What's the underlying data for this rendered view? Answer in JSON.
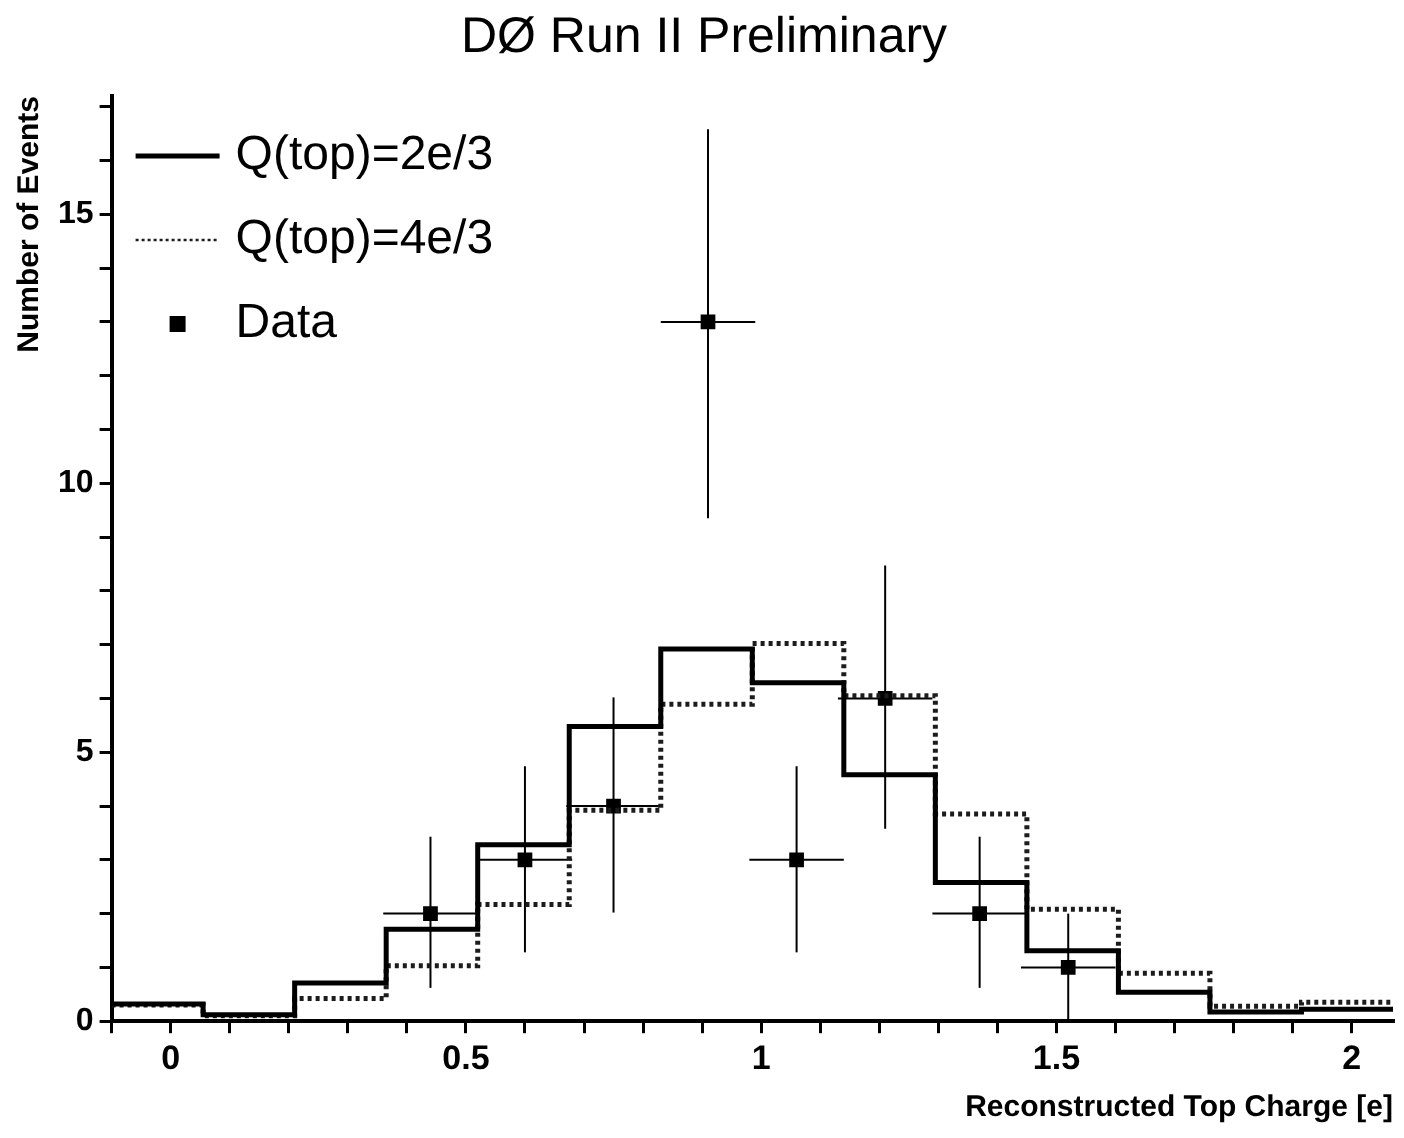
{
  "chart_data": {
    "type": "histogram",
    "title": "DØ Run II Preliminary",
    "xlabel": "Reconstructed Top Charge [e]",
    "ylabel": "Number of Events",
    "bins": [
      -0.1,
      0.055,
      0.21,
      0.365,
      0.52,
      0.675,
      0.83,
      0.985,
      1.14,
      1.295,
      1.45,
      1.605,
      1.76,
      1.915,
      2.07
    ],
    "series": [
      {
        "name": "Q(top)=2e/3",
        "color": "#000000",
        "line_style": "solid",
        "values": [
          0.32,
          0.12,
          0.71,
          1.71,
          3.28,
          5.48,
          6.92,
          6.29,
          4.58,
          2.58,
          1.31,
          0.54,
          0.17,
          0.22
        ]
      },
      {
        "name": "Q(top)=4e/3",
        "color": "#1c1c1c",
        "line_style": "dotted",
        "values": [
          0.3,
          0.1,
          0.42,
          1.03,
          2.17,
          3.92,
          5.89,
          7.02,
          6.05,
          3.85,
          2.08,
          0.89,
          0.28,
          0.35
        ]
      },
      {
        "name": "Data",
        "type": "scatter",
        "color": "#000000",
        "marker": "square",
        "x": [
          0.44,
          0.6,
          0.75,
          0.91,
          1.06,
          1.21,
          1.37,
          1.52
        ],
        "values": [
          2,
          3,
          4,
          13,
          3,
          6,
          2,
          1
        ],
        "errors": [
          [
            0.62,
            3.43
          ],
          [
            1.28,
            4.74
          ],
          [
            2.02,
            6.02
          ],
          [
            9.35,
            16.58
          ],
          [
            1.28,
            4.74
          ],
          [
            3.58,
            8.47
          ],
          [
            0.62,
            3.43
          ],
          [
            0,
            2.0
          ]
        ],
        "xerrors": [
          0.08,
          0.08,
          0.08,
          0.08,
          0.08,
          0.08,
          0.08,
          0.08
        ]
      }
    ],
    "xlim": [
      -0.1,
      2.07
    ],
    "ylim": [
      0,
      17.2
    ],
    "xticks": [
      {
        "value": -0.1,
        "label": null
      },
      0,
      {
        "value": 0.1,
        "label": null
      },
      {
        "value": 0.2,
        "label": null
      },
      {
        "value": 0.3,
        "label": null
      },
      {
        "value": 0.4,
        "label": null
      },
      0.5,
      {
        "value": 0.6,
        "label": null
      },
      {
        "value": 0.7,
        "label": null
      },
      {
        "value": 0.8,
        "label": null
      },
      {
        "value": 0.9,
        "label": null
      },
      1,
      {
        "value": 1.1,
        "label": null
      },
      {
        "value": 1.2,
        "label": null
      },
      {
        "value": 1.3,
        "label": null
      },
      {
        "value": 1.4,
        "label": null
      },
      1.5,
      {
        "value": 1.6,
        "label": null
      },
      {
        "value": 1.7,
        "label": null
      },
      {
        "value": 1.8,
        "label": null
      },
      {
        "value": 1.9,
        "label": null
      },
      2
    ],
    "yticks": [
      0,
      {
        "value": 1,
        "label": null
      },
      {
        "value": 2,
        "label": null
      },
      {
        "value": 3,
        "label": null
      },
      {
        "value": 4,
        "label": null
      },
      5,
      {
        "value": 6,
        "label": null
      },
      {
        "value": 7,
        "label": null
      },
      {
        "value": 8,
        "label": null
      },
      {
        "value": 9,
        "label": null
      },
      10,
      {
        "value": 11,
        "label": null
      },
      {
        "value": 12,
        "label": null
      },
      {
        "value": 13,
        "label": null
      },
      {
        "value": 14,
        "label": null
      },
      15,
      {
        "value": 16,
        "label": null
      },
      {
        "value": 17,
        "label": null
      }
    ],
    "legend": "top left",
    "grid": false
  }
}
